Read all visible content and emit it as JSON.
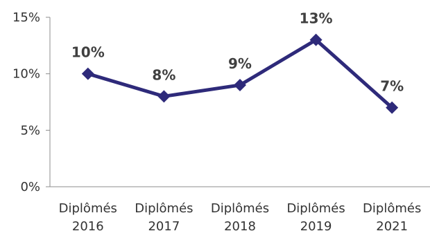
{
  "chart_data": {
    "type": "line",
    "categories": [
      [
        "Diplômés",
        "2016"
      ],
      [
        "Diplômés",
        "2017"
      ],
      [
        "Diplômés",
        "2018"
      ],
      [
        "Diplômés",
        "2019"
      ],
      [
        "Diplômés",
        "2021"
      ]
    ],
    "values": [
      10,
      8,
      9,
      13,
      7
    ],
    "data_labels": [
      "10%",
      "8%",
      "9%",
      "13%",
      "7%"
    ],
    "ylim": [
      0,
      15
    ],
    "yticks": [
      0,
      5,
      10,
      15
    ],
    "ytick_labels": [
      "0%",
      "5%",
      "10%",
      "15%"
    ],
    "grid": false,
    "marker": "diamond",
    "line_color": "#2E2A7A"
  }
}
